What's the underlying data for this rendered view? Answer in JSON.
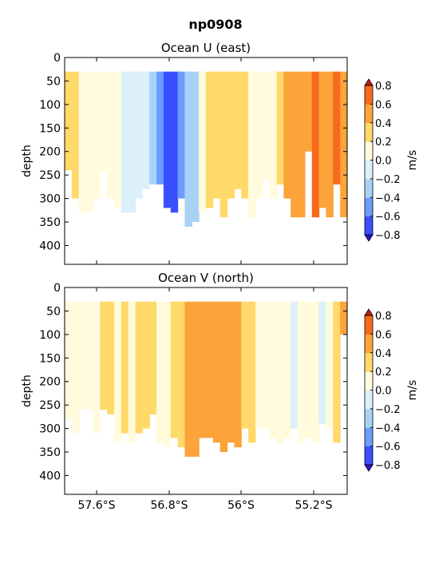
{
  "figure": {
    "title": "np0908"
  },
  "chart_data": [
    {
      "type": "contourf",
      "title": "Ocean U (east)",
      "xlabel": "",
      "ylabel": "depth",
      "x_ticks": [
        "57.6°S",
        "56.8°S",
        "56°S",
        "55.2°S"
      ],
      "y_ticks": [
        0,
        50,
        100,
        150,
        200,
        250,
        300,
        350,
        400
      ],
      "ylim": [
        440,
        0
      ],
      "colorbar": {
        "label": "m/s",
        "ticks": [
          "0.8",
          "0.6",
          "0.4",
          "0.2",
          "0.0",
          "−0.2",
          "−0.4",
          "−0.6",
          "−0.8"
        ]
      },
      "levels": [
        -0.8,
        -0.6,
        -0.4,
        -0.2,
        0.0,
        0.2,
        0.4,
        0.6,
        0.8
      ],
      "columns": [
        {
          "v": 0.3,
          "b": 240
        },
        {
          "v": 0.25,
          "b": 300
        },
        {
          "v": 0.1,
          "b": 330
        },
        {
          "v": 0.05,
          "b": 330
        },
        {
          "v": 0.1,
          "b": 300
        },
        {
          "v": 0.05,
          "b": 240
        },
        {
          "v": 0.1,
          "b": 300
        },
        {
          "v": 0.0,
          "b": 320
        },
        {
          "v": -0.05,
          "b": 330
        },
        {
          "v": -0.1,
          "b": 330
        },
        {
          "v": -0.15,
          "b": 300
        },
        {
          "v": -0.1,
          "b": 280
        },
        {
          "v": -0.3,
          "b": 270
        },
        {
          "v": -0.5,
          "b": 270
        },
        {
          "v": -0.7,
          "b": 320
        },
        {
          "v": -0.7,
          "b": 330
        },
        {
          "v": -0.5,
          "b": 300
        },
        {
          "v": -0.35,
          "b": 360
        },
        {
          "v": -0.25,
          "b": 350
        },
        {
          "v": 0.1,
          "b": 330
        },
        {
          "v": 0.3,
          "b": 320
        },
        {
          "v": 0.35,
          "b": 300
        },
        {
          "v": 0.3,
          "b": 340
        },
        {
          "v": 0.25,
          "b": 300
        },
        {
          "v": 0.2,
          "b": 280
        },
        {
          "v": 0.3,
          "b": 300
        },
        {
          "v": 0.1,
          "b": 340
        },
        {
          "v": 0.05,
          "b": 300
        },
        {
          "v": 0.0,
          "b": 260
        },
        {
          "v": 0.1,
          "b": 300
        },
        {
          "v": 0.25,
          "b": 270
        },
        {
          "v": 0.4,
          "b": 300
        },
        {
          "v": 0.45,
          "b": 340
        },
        {
          "v": 0.5,
          "b": 340
        },
        {
          "v": 0.55,
          "b": 200
        },
        {
          "v": 0.6,
          "b": 340
        },
        {
          "v": 0.5,
          "b": 320
        },
        {
          "v": 0.4,
          "b": 340
        },
        {
          "v": 0.65,
          "b": 270
        },
        {
          "v": 0.55,
          "b": 340
        }
      ]
    },
    {
      "type": "contourf",
      "title": "Ocean V (north)",
      "xlabel": "",
      "ylabel": "depth",
      "x_ticks": [
        "57.6°S",
        "56.8°S",
        "56°S",
        "55.2°S"
      ],
      "y_ticks": [
        0,
        50,
        100,
        150,
        200,
        250,
        300,
        350,
        400
      ],
      "ylim": [
        440,
        0
      ],
      "colorbar": {
        "label": "m/s",
        "ticks": [
          "0.8",
          "0.6",
          "0.4",
          "0.2",
          "0.0",
          "−0.2",
          "−0.4",
          "−0.6",
          "−0.8"
        ]
      },
      "levels": [
        -0.8,
        -0.6,
        -0.4,
        -0.2,
        0.0,
        0.2,
        0.4,
        0.6,
        0.8
      ],
      "columns": [
        {
          "v": 0.05,
          "b": 280
        },
        {
          "v": 0.1,
          "b": 310
        },
        {
          "v": 0.15,
          "b": 260
        },
        {
          "v": 0.05,
          "b": 260
        },
        {
          "v": 0.1,
          "b": 310
        },
        {
          "v": 0.2,
          "b": 260
        },
        {
          "v": 0.25,
          "b": 270
        },
        {
          "v": 0.1,
          "b": 330
        },
        {
          "v": 0.2,
          "b": 310
        },
        {
          "v": 0.15,
          "b": 330
        },
        {
          "v": 0.25,
          "b": 310
        },
        {
          "v": 0.3,
          "b": 300
        },
        {
          "v": 0.2,
          "b": 270
        },
        {
          "v": 0.1,
          "b": 330
        },
        {
          "v": 0.15,
          "b": 340
        },
        {
          "v": 0.2,
          "b": 320
        },
        {
          "v": 0.25,
          "b": 340
        },
        {
          "v": 0.45,
          "b": 360
        },
        {
          "v": 0.5,
          "b": 360
        },
        {
          "v": 0.55,
          "b": 320
        },
        {
          "v": 0.45,
          "b": 320
        },
        {
          "v": 0.45,
          "b": 330
        },
        {
          "v": 0.4,
          "b": 350
        },
        {
          "v": 0.5,
          "b": 330
        },
        {
          "v": 0.45,
          "b": 340
        },
        {
          "v": 0.3,
          "b": 300
        },
        {
          "v": 0.25,
          "b": 330
        },
        {
          "v": 0.1,
          "b": 300
        },
        {
          "v": 0.05,
          "b": 300
        },
        {
          "v": 0.05,
          "b": 320
        },
        {
          "v": 0.1,
          "b": 330
        },
        {
          "v": 0.0,
          "b": 320
        },
        {
          "v": -0.05,
          "b": 300
        },
        {
          "v": 0.05,
          "b": 330
        },
        {
          "v": 0.0,
          "b": 320
        },
        {
          "v": 0.0,
          "b": 330
        },
        {
          "v": -0.1,
          "b": 290
        },
        {
          "v": 0.1,
          "b": 300
        },
        {
          "v": 0.2,
          "b": 330
        },
        {
          "v": 0.5,
          "b": 100
        }
      ]
    }
  ]
}
